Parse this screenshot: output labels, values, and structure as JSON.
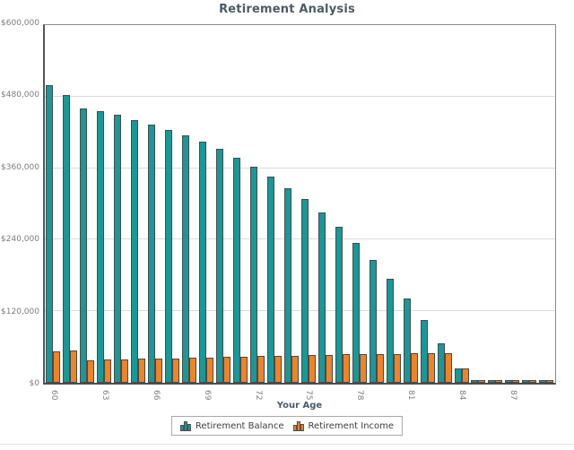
{
  "title": "Retirement Analysis",
  "chart_data": {
    "type": "bar",
    "title": "Retirement Analysis",
    "xlabel": "Your Age",
    "ylabel": "",
    "ylim": [
      0,
      600000
    ],
    "ytick_interval": 120000,
    "ytick_labels": [
      "$0",
      "$120,000",
      "$240,000",
      "$360,000",
      "$480,000",
      "$600,000"
    ],
    "xtick_labels": [
      "60",
      "63",
      "66",
      "69",
      "72",
      "75",
      "78",
      "81",
      "84",
      "87"
    ],
    "grid": "horizontal-major",
    "legend_position": "bottom-center",
    "categories": [
      60,
      61,
      62,
      63,
      64,
      65,
      66,
      67,
      68,
      69,
      70,
      71,
      72,
      73,
      74,
      75,
      76,
      77,
      78,
      79,
      80,
      81,
      82,
      83,
      84,
      85,
      86,
      87,
      88,
      89
    ],
    "series": [
      {
        "name": "Retirement Balance",
        "color": "#189899",
        "values": [
          500000,
          482000,
          460000,
          455000,
          450000,
          441000,
          433000,
          424000,
          415000,
          404000,
          392000,
          377000,
          362000,
          346000,
          327000,
          308000,
          285000,
          261000,
          234000,
          206000,
          174000,
          141000,
          105000,
          66000,
          24000,
          4000,
          4000,
          4000,
          4000,
          4000
        ]
      },
      {
        "name": "Retirement Income",
        "color": "#EF8326",
        "values": [
          52000,
          53500,
          38000,
          39000,
          39800,
          40300,
          40800,
          41300,
          42000,
          42600,
          43200,
          43800,
          44400,
          45000,
          45700,
          46300,
          47000,
          47700,
          48400,
          48400,
          48800,
          49000,
          49000,
          49300,
          24000,
          4000,
          4000,
          4000,
          4000,
          4000
        ]
      }
    ]
  },
  "colors": {
    "balance": "#189899",
    "income": "#EF8326",
    "bar_outline": "#4a4a4a",
    "gridline": "#dcdcdc",
    "axis": "#4d4d4d",
    "title_text": "#4d5a68",
    "tick_text": "#7d7d7d",
    "legend_border": "#a9a9a9"
  }
}
